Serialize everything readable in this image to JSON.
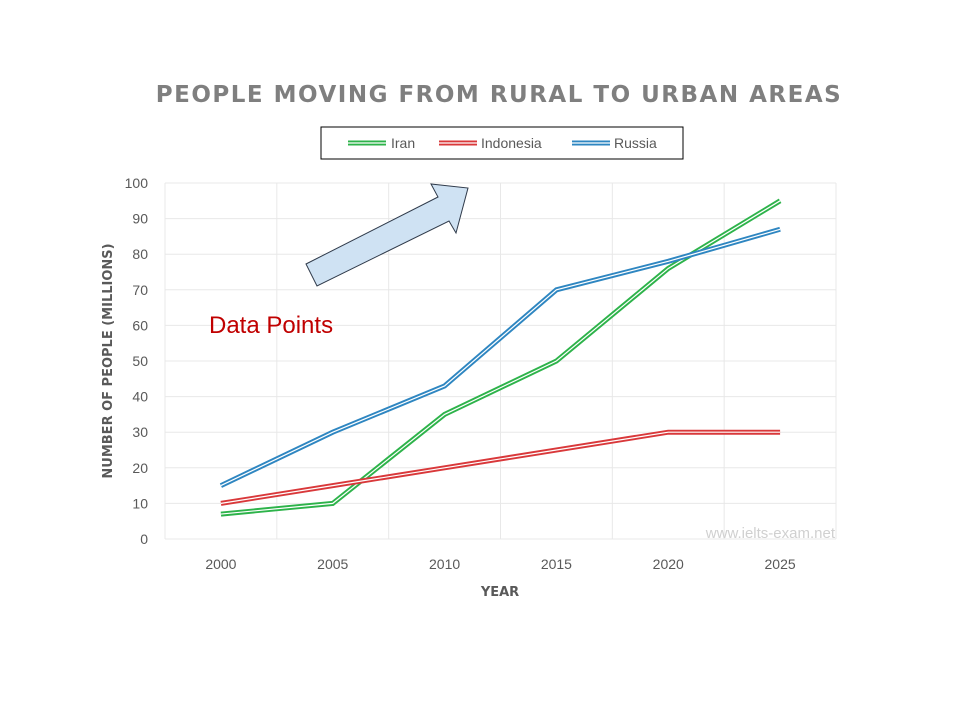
{
  "chart_data": {
    "type": "line",
    "title": "PEOPLE MOVING FROM RURAL TO URBAN AREAS",
    "xlabel": "YEAR",
    "ylabel": "NUMBER OF PEOPLE (MILLIONS)",
    "x": [
      "2000",
      "2005",
      "2010",
      "2015",
      "2020",
      "2025"
    ],
    "ylim": [
      0,
      100
    ],
    "yticks": [
      "0",
      "10",
      "20",
      "30",
      "40",
      "50",
      "60",
      "70",
      "80",
      "90",
      "100"
    ],
    "grid": true,
    "legend_position": "top",
    "series": [
      {
        "name": "Iran",
        "color": "#2db34a",
        "values": [
          7,
          10,
          35,
          50,
          76,
          95
        ]
      },
      {
        "name": "Indonesia",
        "color": "#d9383a",
        "values": [
          10,
          15,
          20,
          25,
          30,
          30
        ]
      },
      {
        "name": "Russia",
        "color": "#2e86c1",
        "values": [
          15,
          30,
          43,
          70,
          78,
          87
        ]
      }
    ],
    "annotation": "Data Points",
    "watermark": "www.ielts-exam.net"
  }
}
